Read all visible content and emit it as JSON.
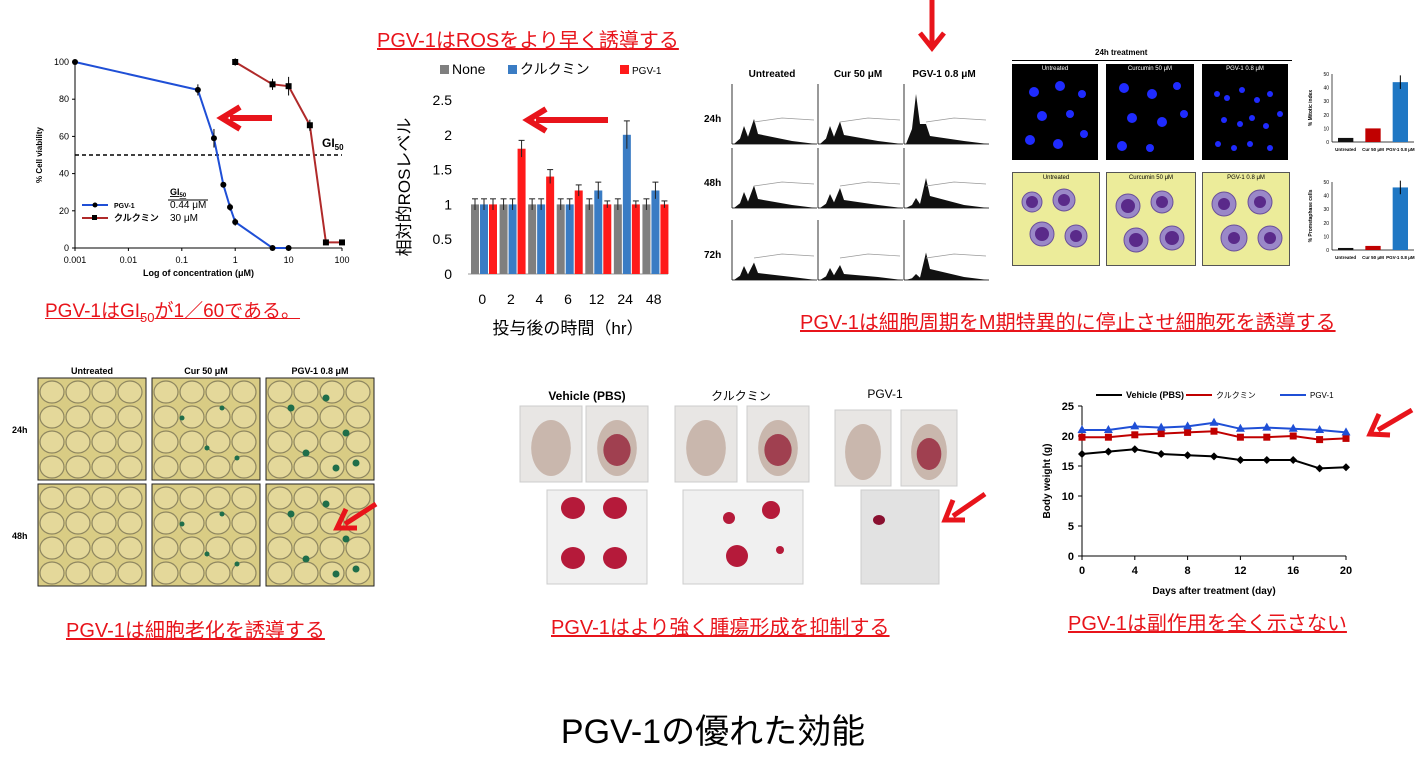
{
  "captions": {
    "gi50": "PGV-1はGI50が1／60である。",
    "ros": "PGV-1はROSをより早く誘導する",
    "cellcycle": "PGV-1は細胞周期をM期特異的に停止させ細胞死を誘導する",
    "senescence": "PGV-1は細胞老化を誘導する",
    "tumor": "PGV-1はより強く腫瘍形成を抑制する",
    "sideeffect": "PGV-1は副作用を全く示さない"
  },
  "page_title": "PGV-1の優れた効能",
  "colors": {
    "accent_red": "#e8141b",
    "pgv1_blue": "#1f4fd6",
    "curcumin_red": "#b02a2a",
    "none_gray": "#7f7f7f",
    "kurkumin_blue": "#3a7cc4",
    "pgv_red": "#ff1a1a"
  },
  "chart_data": [
    {
      "type": "line",
      "xscale": "log",
      "xlabel": "Log of concentration  (μM)",
      "ylabel": "% Cell viability",
      "ylim": [
        0,
        100
      ],
      "xticks": [
        "0.001",
        "0.01",
        "0.1",
        "1",
        "10",
        "100"
      ],
      "yticks": [
        "0",
        "20",
        "40",
        "60",
        "80",
        "100"
      ],
      "threshold_label": "GI50",
      "threshold": 50,
      "legend": {
        "header": "GI50",
        "entries": [
          {
            "name": "PGV-1",
            "value": "0.44 μM"
          },
          {
            "name": "クルクミン",
            "value": "30 μM"
          }
        ]
      },
      "series": [
        {
          "name": "PGV-1",
          "color": "#1f4fd6",
          "x": [
            0.001,
            0.2,
            0.4,
            0.6,
            0.8,
            1,
            5,
            10
          ],
          "y": [
            100,
            85,
            59,
            34,
            22,
            14,
            0,
            0
          ],
          "err": [
            0,
            3,
            5,
            0,
            2,
            2,
            0,
            0
          ]
        },
        {
          "name": "クルクミン",
          "color": "#b02a2a",
          "x": [
            1,
            5,
            10,
            25,
            50,
            100
          ],
          "y": [
            100,
            88,
            87,
            66,
            3,
            3
          ],
          "err": [
            2,
            3,
            5,
            3,
            1,
            1
          ]
        }
      ]
    },
    {
      "type": "bar",
      "ylabel": "相対的ROSレベル",
      "xlabel": "投与後の時間（hr）",
      "ylim": [
        0,
        2.5
      ],
      "yticks": [
        "0",
        "0.5",
        "1",
        "1.5",
        "2",
        "2.5"
      ],
      "categories": [
        "0",
        "2",
        "4",
        "6",
        "12",
        "24",
        "48"
      ],
      "series": [
        {
          "name": "None",
          "color": "#7f7f7f",
          "values": [
            1.0,
            1.0,
            1.0,
            1.0,
            1.0,
            1.0,
            1.0
          ],
          "err": [
            0.08,
            0.08,
            0.08,
            0.08,
            0.08,
            0.08,
            0.08
          ]
        },
        {
          "name": "クルクミン",
          "color": "#3a7cc4",
          "values": [
            1.0,
            1.0,
            1.0,
            1.0,
            1.2,
            2.0,
            1.2
          ],
          "err": [
            0.08,
            0.08,
            0.08,
            0.08,
            0.12,
            0.2,
            0.12
          ]
        },
        {
          "name": "PGV-1",
          "color": "#ff1a1a",
          "values": [
            1.0,
            1.8,
            1.4,
            1.2,
            1.0,
            1.0,
            1.0
          ],
          "err": [
            0.08,
            0.12,
            0.1,
            0.08,
            0.05,
            0.05,
            0.05
          ]
        }
      ]
    },
    {
      "type": "bar",
      "ylabel": "% Mitotic index",
      "ylim": [
        0,
        50
      ],
      "yticks": [
        "0",
        "10",
        "20",
        "30",
        "40",
        "50"
      ],
      "categories": [
        "Untreated",
        "Cur 50 μM",
        "PGV-1 0.8 μM"
      ],
      "values": [
        3,
        10,
        44
      ],
      "colors": [
        "#111111",
        "#c00000",
        "#1f77c4"
      ]
    },
    {
      "type": "bar",
      "ylabel": "% Prometaphase cells",
      "ylim": [
        0,
        50
      ],
      "yticks": [
        "0",
        "10",
        "20",
        "30",
        "40",
        "50"
      ],
      "categories": [
        "Untreated",
        "Cur 50 μM",
        "PGV-1 0.8 μM"
      ],
      "values": [
        1.5,
        3,
        46
      ],
      "colors": [
        "#111111",
        "#c00000",
        "#1f77c4"
      ]
    },
    {
      "type": "line",
      "xlabel": "Days after treatment (day)",
      "ylabel": "Body weight (g)",
      "ylim": [
        0,
        25
      ],
      "xlim": [
        0,
        20
      ],
      "xticks": [
        "0",
        "4",
        "8",
        "12",
        "16",
        "20"
      ],
      "yticks": [
        "0",
        "5",
        "10",
        "15",
        "20",
        "25"
      ],
      "series": [
        {
          "name": "Vehicle (PBS)",
          "color": "#000000",
          "x": [
            0,
            2,
            4,
            6,
            8,
            10,
            12,
            14,
            16,
            18,
            20
          ],
          "y": [
            17,
            17.4,
            17.8,
            17,
            16.8,
            16.6,
            16,
            16,
            16,
            14.6,
            14.8
          ]
        },
        {
          "name": "クルクミン",
          "color": "#c00000",
          "x": [
            0,
            2,
            4,
            6,
            8,
            10,
            12,
            14,
            16,
            18,
            20
          ],
          "y": [
            19.8,
            19.8,
            20.2,
            20.4,
            20.6,
            20.8,
            19.8,
            19.8,
            20,
            19.4,
            19.6
          ]
        },
        {
          "name": "PGV-1",
          "color": "#1f4fd6",
          "x": [
            0,
            2,
            4,
            6,
            8,
            10,
            12,
            14,
            16,
            18,
            20
          ],
          "y": [
            21,
            21,
            21.6,
            21.4,
            21.6,
            22.2,
            21.2,
            21.4,
            21.2,
            21,
            20.6
          ]
        }
      ]
    }
  ],
  "flow": {
    "columns": [
      "Untreated",
      "Cur 50 μM",
      "PGV-1 0.8 μM"
    ],
    "rows": [
      "24h",
      "48h",
      "72h"
    ]
  },
  "microscopy": {
    "title": "24h treatment",
    "columns": [
      "Untreated",
      "Curcumin 50 μM",
      "PGV-1 0.8 μM"
    ]
  },
  "senescence": {
    "columns": [
      "Untreated",
      "Cur 50 μM",
      "PGV-1 0.8 μM"
    ],
    "rows": [
      "24h",
      "48h"
    ]
  },
  "tumor_labels": [
    "Vehicle (PBS)",
    "クルクミン",
    "PGV-1"
  ]
}
